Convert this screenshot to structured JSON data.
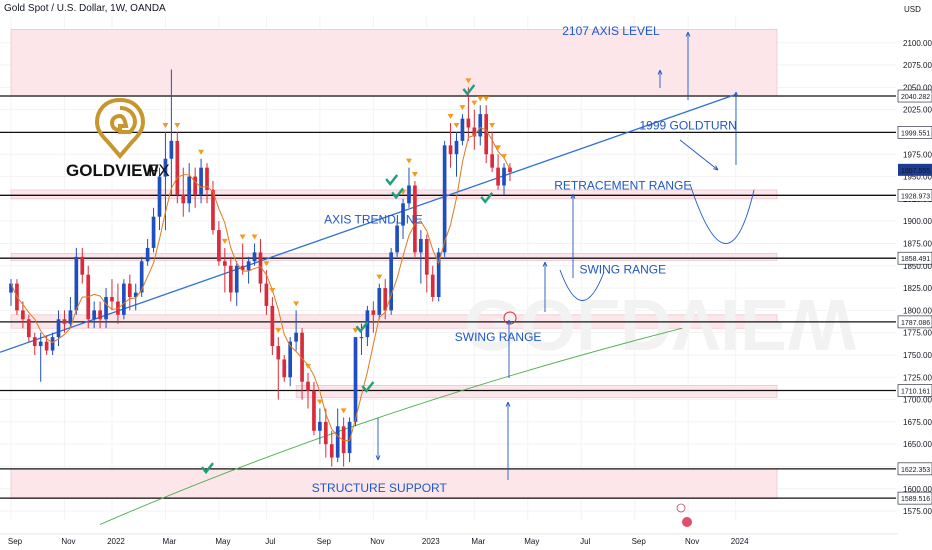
{
  "header": {
    "symbol": "Gold Spot / U.S. Dollar, 1W, OANDA",
    "currency": "USD"
  },
  "logo": {
    "brand_bold": "GOLDVIEW",
    "brand_light": "FX"
  },
  "watermark": "GOLDVIEW",
  "colors": {
    "up": "#1f4fbf",
    "down": "#d92b3a",
    "ma": "#e07a1f",
    "ma_long": "#4caf50",
    "trendline": "#2f6fd6",
    "annotation": "#1f57c4",
    "zone": "#fde6ea",
    "check": "#1aa17a",
    "signal": "#f29b1f"
  },
  "chart_data": {
    "type": "candlestick",
    "title": "Gold Spot / U.S. Dollar, 1W, OANDA",
    "ylim": [
      1565,
      2130
    ],
    "y_ticks": [
      1575,
      1600,
      1625,
      1650,
      1675,
      1700,
      1725,
      1750,
      1775,
      1800,
      1825,
      1850,
      1875,
      1900,
      1925,
      1950,
      1975,
      2000,
      2025,
      2050,
      2075,
      2100
    ],
    "y_tick_labels": [
      "1575.000",
      "1600.000",
      "1625.000",
      "1650.000",
      "1675.000",
      "1700.000",
      "1725.000",
      "1750.000",
      "1775.000",
      "1800.000",
      "1825.000",
      "1850.000",
      "1875.000",
      "1900.000",
      "1925.000",
      "1950.000",
      "1975.000",
      "2000.000",
      "2025.000",
      "2050.000",
      "2075.000",
      "2100.000"
    ],
    "x_labels": [
      {
        "label": "Sep",
        "week": 0
      },
      {
        "label": "Nov",
        "week": 9
      },
      {
        "label": "2022",
        "week": 17
      },
      {
        "label": "Mar",
        "week": 26
      },
      {
        "label": "May",
        "week": 35
      },
      {
        "label": "Jul",
        "week": 43
      },
      {
        "label": "Sep",
        "week": 52
      },
      {
        "label": "Nov",
        "week": 61
      },
      {
        "label": "2023",
        "week": 70
      },
      {
        "label": "Mar",
        "week": 78
      },
      {
        "label": "May",
        "week": 87
      },
      {
        "label": "Jul",
        "week": 96
      },
      {
        "label": "Sep",
        "week": 105
      },
      {
        "label": "Nov",
        "week": 114
      },
      {
        "label": "2024",
        "week": 122
      }
    ],
    "candles": [
      [
        1820,
        1835,
        1805,
        1830
      ],
      [
        1830,
        1835,
        1795,
        1800
      ],
      [
        1800,
        1810,
        1780,
        1790
      ],
      [
        1790,
        1795,
        1765,
        1770
      ],
      [
        1770,
        1775,
        1750,
        1760
      ],
      [
        1760,
        1775,
        1720,
        1765
      ],
      [
        1765,
        1772,
        1750,
        1755
      ],
      [
        1755,
        1775,
        1750,
        1770
      ],
      [
        1770,
        1800,
        1760,
        1790
      ],
      [
        1790,
        1800,
        1775,
        1785
      ],
      [
        1785,
        1815,
        1780,
        1800
      ],
      [
        1800,
        1870,
        1795,
        1860
      ],
      [
        1860,
        1870,
        1830,
        1840
      ],
      [
        1840,
        1850,
        1780,
        1790
      ],
      [
        1790,
        1810,
        1780,
        1800
      ],
      [
        1800,
        1810,
        1780,
        1790
      ],
      [
        1790,
        1825,
        1780,
        1815
      ],
      [
        1815,
        1835,
        1800,
        1810
      ],
      [
        1810,
        1830,
        1785,
        1795
      ],
      [
        1795,
        1835,
        1790,
        1830
      ],
      [
        1830,
        1840,
        1800,
        1815
      ],
      [
        1815,
        1830,
        1800,
        1820
      ],
      [
        1820,
        1860,
        1815,
        1855
      ],
      [
        1855,
        1880,
        1850,
        1870
      ],
      [
        1870,
        1915,
        1865,
        1905
      ],
      [
        1905,
        1960,
        1890,
        1950
      ],
      [
        1950,
        2000,
        1890,
        1970
      ],
      [
        1970,
        2070,
        1930,
        1990
      ],
      [
        1990,
        2000,
        1920,
        1930
      ],
      [
        1930,
        1960,
        1905,
        1920
      ],
      [
        1920,
        1965,
        1910,
        1950
      ],
      [
        1950,
        1960,
        1915,
        1930
      ],
      [
        1930,
        1970,
        1920,
        1960
      ],
      [
        1960,
        1965,
        1920,
        1935
      ],
      [
        1935,
        1945,
        1885,
        1890
      ],
      [
        1890,
        1900,
        1850,
        1855
      ],
      [
        1855,
        1870,
        1820,
        1850
      ],
      [
        1850,
        1860,
        1810,
        1820
      ],
      [
        1820,
        1855,
        1805,
        1850
      ],
      [
        1850,
        1875,
        1840,
        1845
      ],
      [
        1845,
        1860,
        1830,
        1855
      ],
      [
        1855,
        1875,
        1850,
        1865
      ],
      [
        1865,
        1880,
        1820,
        1830
      ],
      [
        1830,
        1845,
        1795,
        1805
      ],
      [
        1805,
        1815,
        1750,
        1760
      ],
      [
        1760,
        1770,
        1700,
        1745
      ],
      [
        1745,
        1750,
        1720,
        1725
      ],
      [
        1725,
        1770,
        1715,
        1765
      ],
      [
        1765,
        1800,
        1755,
        1775
      ],
      [
        1775,
        1780,
        1700,
        1720
      ],
      [
        1720,
        1730,
        1690,
        1710
      ],
      [
        1710,
        1720,
        1660,
        1665
      ],
      [
        1665,
        1690,
        1650,
        1675
      ],
      [
        1675,
        1690,
        1635,
        1650
      ],
      [
        1650,
        1665,
        1625,
        1635
      ],
      [
        1635,
        1690,
        1630,
        1670
      ],
      [
        1670,
        1680,
        1625,
        1640
      ],
      [
        1640,
        1680,
        1630,
        1675
      ],
      [
        1675,
        1770,
        1670,
        1770
      ],
      [
        1770,
        1785,
        1750,
        1770
      ],
      [
        1770,
        1805,
        1760,
        1800
      ],
      [
        1800,
        1810,
        1775,
        1795
      ],
      [
        1795,
        1830,
        1790,
        1825
      ],
      [
        1825,
        1835,
        1790,
        1800
      ],
      [
        1800,
        1870,
        1795,
        1865
      ],
      [
        1865,
        1900,
        1860,
        1895
      ],
      [
        1895,
        1925,
        1880,
        1920
      ],
      [
        1920,
        1960,
        1915,
        1940
      ],
      [
        1940,
        1945,
        1860,
        1865
      ],
      [
        1865,
        1890,
        1830,
        1880
      ],
      [
        1880,
        1885,
        1820,
        1840
      ],
      [
        1840,
        1850,
        1810,
        1815
      ],
      [
        1815,
        1870,
        1810,
        1865
      ],
      [
        1865,
        1990,
        1860,
        1985
      ],
      [
        1985,
        2010,
        1960,
        1975
      ],
      [
        1975,
        2000,
        1950,
        1990
      ],
      [
        1990,
        2020,
        1985,
        2015
      ],
      [
        2015,
        2050,
        1990,
        2005
      ],
      [
        2005,
        2025,
        1980,
        1995
      ],
      [
        1995,
        2030,
        1985,
        2020
      ],
      [
        2020,
        2030,
        1965,
        1975
      ],
      [
        1975,
        2000,
        1955,
        1960
      ],
      [
        1960,
        1975,
        1935,
        1940
      ],
      [
        1940,
        1965,
        1930,
        1960
      ],
      [
        1960,
        1965,
        1945,
        1955
      ]
    ],
    "h_levels": [
      {
        "price": 2040.282,
        "label": "2040.282"
      },
      {
        "price": 1999.551,
        "label": "1999.551"
      },
      {
        "price": 1928.973,
        "label": "1928.973"
      },
      {
        "price": 1858.491,
        "label": "1858.491"
      },
      {
        "price": 1787.086,
        "label": "1787.086"
      },
      {
        "price": 1710.161,
        "label": "1710.161"
      },
      {
        "price": 1622.353,
        "label": "1622.353"
      },
      {
        "price": 1589.516,
        "label": "1589.516"
      }
    ],
    "current_price": {
      "price": 1957.555,
      "label": "1957.555"
    },
    "zones": [
      {
        "y1": 2040,
        "y2": 2115,
        "x1": 0,
        "x2": "end"
      },
      {
        "y1": 1925,
        "y2": 1935,
        "x1": 0,
        "x2": "end"
      },
      {
        "y1": 1856,
        "y2": 1864,
        "x1": 0,
        "x2": "end"
      },
      {
        "y1": 1780,
        "y2": 1795,
        "x1": 0,
        "x2": "end"
      },
      {
        "y1": 1702,
        "y2": 1716,
        "x1": 48,
        "x2": "end"
      },
      {
        "y1": 1589,
        "y2": 1622,
        "x1": 0,
        "x2": "end"
      }
    ],
    "annotations": [
      {
        "text": "2107 AXIS LEVEL",
        "week": 101,
        "price": 2113
      },
      {
        "text": "1999 GOLDTURN",
        "week": 114,
        "price": 2007
      },
      {
        "text": "AXIS TRENDLINE",
        "week": 61,
        "price": 1902
      },
      {
        "text": "RETRACEMENT RANGE",
        "week": 103,
        "price": 1940
      },
      {
        "text": "SWING RANGE",
        "week": 103,
        "price": 1846
      },
      {
        "text": "SWING RANGE",
        "week": 82,
        "price": 1770
      },
      {
        "text": "STRUCTURE SUPPORT",
        "week": 62,
        "price": 1601
      }
    ]
  }
}
